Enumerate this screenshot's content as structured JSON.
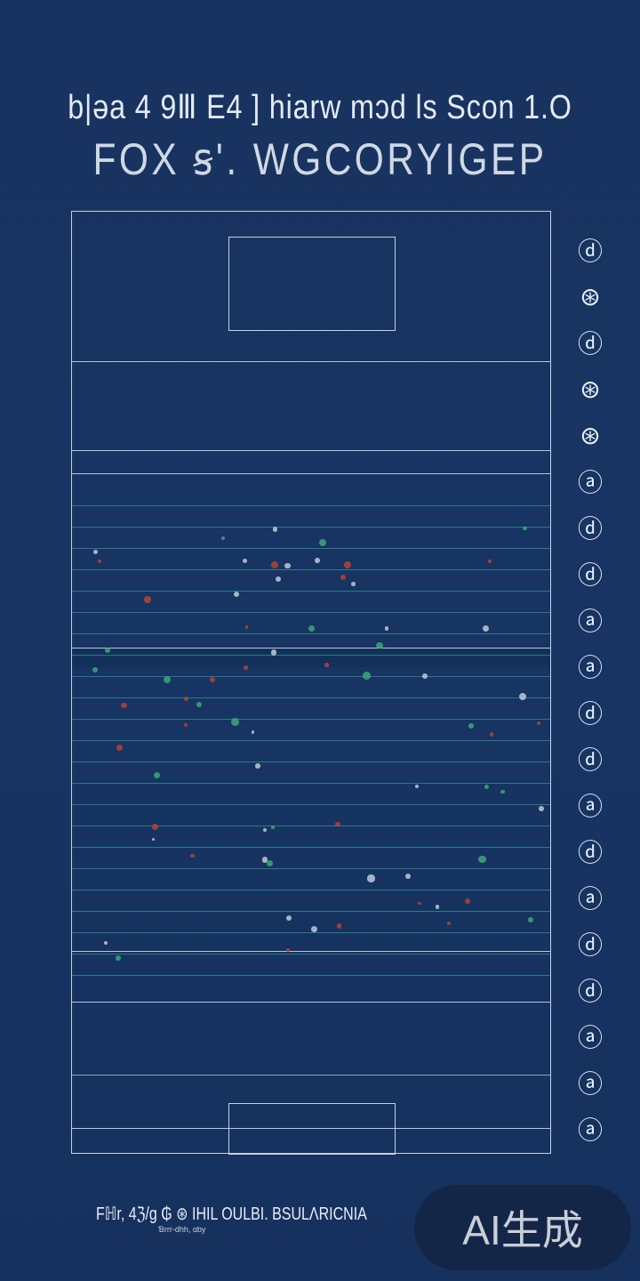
{
  "header": {
    "line1": "b|ǝa 4 9Ⅲ E4 ] hiarw mɔd ls Scon 1.O",
    "line2": "FOX ꞩ'. WGCORYIGEP"
  },
  "side_glyphs": [
    "ⓓ",
    "⊛",
    "ⓓ",
    "⊛",
    "⊛",
    "ⓐ",
    "ⓓ",
    "ⓓ",
    "ⓐ",
    "ⓐ",
    "ⓓ",
    "ⓓ",
    "ⓐ",
    "ⓓ",
    "ⓐ",
    "ⓓ",
    "ⓓ",
    "ⓐ",
    "ⓐ",
    "ⓐ"
  ],
  "footer": {
    "text": "Fℍr, 4ℨ/ɡ ₲ ⊛ IHIL OULBI. BSULΛRICNIA",
    "sub": "Ɓrrr-dhh, ɑby"
  },
  "watermark": "AI生成",
  "colors": {
    "background": "#173463",
    "lines": "#c7d2e2",
    "stripes": "#2b8a8a",
    "marks_red": "#c0432f",
    "marks_green": "#3fae7a"
  }
}
